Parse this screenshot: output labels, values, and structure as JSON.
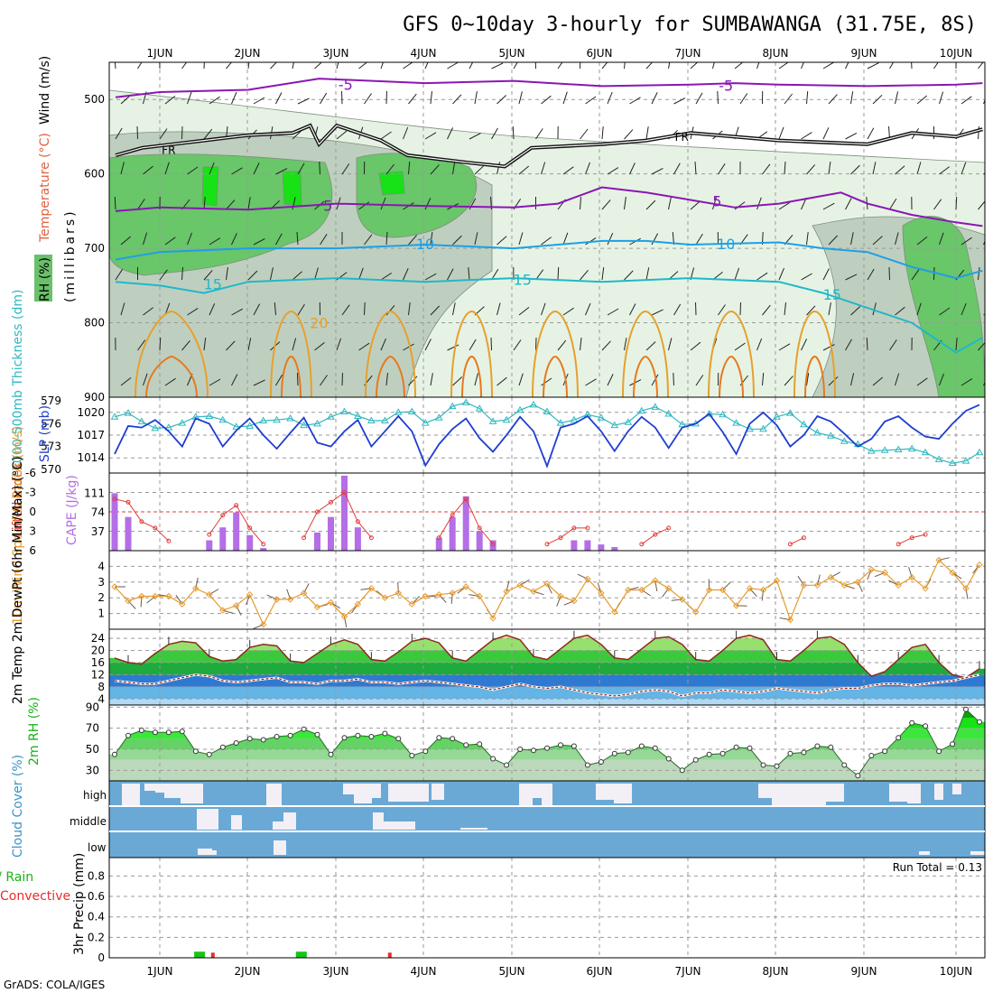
{
  "title": "GFS 0~10day 3-hourly for SUMBAWANGA (31.75E, 8S)",
  "footer": "GrADS: COLA/IGES",
  "run_total": "Run Total = 0.13",
  "colors": {
    "rh_light": "#e6f3e4",
    "rh_gray": "#bfcfbf",
    "rh_mid": "#69c669",
    "rh_bright": "#16e216",
    "temp_purple": "#8a16b4",
    "temp_blue": "#1e9fe6",
    "temp_cyan": "#20b8c8",
    "temp_orange": "#e6a02e",
    "temp_orange2": "#e67a1e",
    "slp": "#1e3ed2",
    "thickness": "#30b8c0",
    "cape": "#b46ee6",
    "lifted": "#e03c3c",
    "wind10": "#e69b2e",
    "temp2m": "#8b2b1e",
    "dewpt": "#e0a07a",
    "rh2m": "#16d216",
    "cloud": "#6aa9d6",
    "cloud_white": "#f2f0f6",
    "precip_total": "#16c416",
    "precip_conv": "#e62e2e"
  },
  "chart_data": [
    {
      "type": "heatmap",
      "name": "upper",
      "ylabel_parts": [
        "RH (%)",
        "Temperature (°C)",
        "Wind (m/s)"
      ],
      "ylabel_unit": "(millibars)",
      "x": [
        "1JUN",
        "2JUN",
        "3JUN",
        "4JUN",
        "5JUN",
        "6JUN",
        "7JUN",
        "8JUN",
        "9JUN",
        "10JUN"
      ],
      "ylim": [
        900,
        450
      ],
      "yticks": [
        500,
        600,
        700,
        800,
        900
      ],
      "contour_labels": [
        "-5",
        "-5",
        "FR",
        "FR",
        "5",
        "5",
        "10",
        "10",
        "15",
        "15",
        "15",
        "20"
      ],
      "isotherms": [
        {
          "label": "-5",
          "color": "temp_purple",
          "values": [
            [
              0.5,
              497
            ],
            [
              1,
              490
            ],
            [
              2,
              487
            ],
            [
              2.8,
              472
            ],
            [
              4,
              478
            ],
            [
              5,
              475
            ],
            [
              6,
              482
            ],
            [
              7,
              480
            ],
            [
              7.5,
              478
            ],
            [
              8,
              480
            ],
            [
              9,
              482
            ],
            [
              10,
              480
            ],
            [
              10.3,
              478
            ]
          ]
        },
        {
          "label": "FR",
          "color": "black",
          "values": [
            [
              0.5,
              575
            ],
            [
              0.8,
              565
            ],
            [
              1.5,
              555
            ],
            [
              2,
              548
            ],
            [
              2.5,
              545
            ],
            [
              2.7,
              535
            ],
            [
              2.8,
              560
            ],
            [
              3,
              535
            ],
            [
              3.5,
              555
            ],
            [
              3.8,
              575
            ],
            [
              4.5,
              585
            ],
            [
              4.9,
              590
            ],
            [
              5.2,
              565
            ],
            [
              6,
              560
            ],
            [
              6.5,
              555
            ],
            [
              7,
              545
            ],
            [
              8,
              555
            ],
            [
              9,
              560
            ],
            [
              9.5,
              545
            ],
            [
              10,
              550
            ],
            [
              10.3,
              540
            ]
          ]
        },
        {
          "label": "5",
          "color": "temp_purple",
          "values": [
            [
              0.5,
              650
            ],
            [
              1,
              645
            ],
            [
              2,
              648
            ],
            [
              3,
              640
            ],
            [
              4,
              643
            ],
            [
              5,
              645
            ],
            [
              5.5,
              640
            ],
            [
              6,
              618
            ],
            [
              6.5,
              625
            ],
            [
              7,
              635
            ],
            [
              7.5,
              645
            ],
            [
              8,
              640
            ],
            [
              8.7,
              625
            ],
            [
              9,
              640
            ],
            [
              9.5,
              655
            ],
            [
              10,
              665
            ],
            [
              10.3,
              670
            ]
          ]
        },
        {
          "label": "10",
          "color": "temp_blue",
          "values": [
            [
              0.5,
              715
            ],
            [
              1,
              705
            ],
            [
              2,
              700
            ],
            [
              3,
              700
            ],
            [
              4,
              695
            ],
            [
              5,
              700
            ],
            [
              6,
              690
            ],
            [
              6.5,
              690
            ],
            [
              7,
              695
            ],
            [
              8,
              692
            ],
            [
              8.5,
              700
            ],
            [
              9,
              705
            ],
            [
              9.5,
              725
            ],
            [
              10,
              740
            ],
            [
              10.3,
              730
            ]
          ]
        },
        {
          "label": "15",
          "color": "temp_cyan",
          "values": [
            [
              0.5,
              745
            ],
            [
              1,
              750
            ],
            [
              1.5,
              760
            ],
            [
              2,
              745
            ],
            [
              3,
              740
            ],
            [
              4,
              745
            ],
            [
              5,
              740
            ],
            [
              6,
              745
            ],
            [
              7,
              740
            ],
            [
              8,
              745
            ],
            [
              8.5,
              760
            ],
            [
              9,
              780
            ],
            [
              9.5,
              800
            ],
            [
              10,
              840
            ],
            [
              10.3,
              820
            ]
          ]
        }
      ]
    },
    {
      "type": "line",
      "name": "pressure",
      "ylabel_left": "1000-500mb Thickness (dm)",
      "ylabel_right": "SLP (mb)",
      "yticks_left": [
        570,
        573,
        576,
        579
      ],
      "yticks_right": [
        1014,
        1017,
        1020
      ],
      "ylim_slp": [
        1012,
        1022
      ],
      "slp": [
        1014.5,
        1018.2,
        1018.0,
        1019.0,
        1017.5,
        1015.5,
        1019.2,
        1018.5,
        1015.5,
        1017.6,
        1019.2,
        1017.0,
        1015.2,
        1017.3,
        1019.3,
        1016.0,
        1015.5,
        1017.5,
        1019.0,
        1015.5,
        1017.5,
        1019.5,
        1017.5,
        1013.0,
        1015.8,
        1017.8,
        1019.2,
        1016.6,
        1014.8,
        1017.0,
        1019.4,
        1017.5,
        1012.9,
        1018.0,
        1018.5,
        1019.5,
        1017.5,
        1014.9,
        1017.5,
        1019.4,
        1018.0,
        1015.3,
        1018.0,
        1018.5,
        1019.8,
        1017.4,
        1014.5,
        1018.5,
        1020.0,
        1018.3,
        1015.5,
        1017.0,
        1019.5,
        1018.8,
        1017.2,
        1015.5,
        1016.5,
        1018.8,
        1019.5,
        1018.0,
        1016.8,
        1016.5,
        1018.5,
        1020.2,
        1021.0
      ],
      "thickness": [
        576.9,
        577.4,
        576.3,
        575.4,
        575.5,
        576.1,
        576.9,
        577.0,
        576.5,
        575.6,
        575.7,
        576.4,
        576.5,
        576.7,
        575.8,
        576.0,
        576.9,
        577.6,
        577.0,
        576.4,
        576.4,
        577.5,
        577.6,
        576.1,
        576.8,
        578.3,
        578.8,
        578.0,
        576.3,
        576.5,
        577.8,
        578.5,
        577.6,
        576.1,
        576.5,
        577.2,
        576.8,
        575.8,
        576.2,
        577.7,
        578.2,
        577.3,
        575.9,
        576.0,
        577.3,
        577.2,
        576.1,
        575.3,
        575.3,
        576.9,
        577.4,
        575.9,
        574.8,
        574.4,
        573.7,
        573.3,
        572.4,
        572.5,
        572.6,
        572.7,
        572.2,
        571.3,
        570.8,
        571.1,
        572.2
      ]
    },
    {
      "type": "bar",
      "name": "stability",
      "ylabel_left": "Lifted Index",
      "ylabel_right": "CAPE (J/kg)",
      "yticks_left": [
        -6,
        -3,
        0,
        3,
        6
      ],
      "yticks_right": [
        37,
        74,
        111
      ],
      "cape": [
        111,
        65,
        0,
        0,
        0,
        0,
        0,
        20,
        45,
        74,
        30,
        5,
        0,
        0,
        0,
        35,
        65,
        145,
        45,
        0,
        0,
        0,
        0,
        0,
        25,
        65,
        105,
        38,
        20,
        0,
        0,
        0,
        0,
        0,
        20,
        20,
        12,
        7,
        0,
        0,
        0,
        0,
        0,
        0,
        0,
        0,
        0,
        0,
        0,
        0,
        0,
        0,
        0,
        0,
        0,
        0,
        0,
        0,
        0,
        0,
        0,
        0,
        0,
        0,
        0
      ],
      "lifted_index": [
        -2,
        -1.5,
        1.5,
        2.5,
        4.5,
        6,
        6,
        3.5,
        0.5,
        -1,
        2.5,
        5,
        6,
        6,
        4,
        0,
        -1.5,
        -3,
        1.5,
        4,
        6,
        6,
        6,
        6,
        4,
        0.5,
        -2,
        2.5,
        5,
        6,
        6,
        6,
        5,
        4,
        2.5,
        2.5,
        6,
        6,
        6,
        5,
        3.5,
        2.5,
        6,
        6,
        6,
        6,
        6,
        6,
        6,
        6,
        5,
        4,
        6,
        6,
        6,
        6,
        6,
        6,
        5,
        4,
        3.5,
        6,
        6,
        6,
        6
      ]
    },
    {
      "type": "line",
      "name": "wind10m",
      "ylabel": "10m Wind Speed & Barbs (m/s)",
      "yticks": [
        1,
        2,
        3,
        4
      ],
      "ylim": [
        0,
        5
      ],
      "values": [
        2.7,
        1.8,
        2.1,
        2.1,
        2.1,
        1.6,
        2.6,
        2.2,
        1.2,
        1.5,
        2.2,
        0.3,
        1.9,
        1.9,
        2.3,
        1.4,
        1.7,
        0.8,
        1.6,
        2.6,
        2.0,
        2.3,
        1.6,
        2.1,
        2.2,
        2.3,
        2.7,
        2.1,
        0.7,
        2.4,
        2.8,
        2.4,
        2.9,
        2.1,
        1.8,
        3.2,
        2.3,
        1.1,
        2.5,
        2.5,
        3.1,
        2.6,
        1.9,
        1.1,
        2.5,
        2.5,
        1.5,
        2.6,
        2.5,
        3.1,
        0.6,
        2.8,
        2.8,
        3.3,
        2.8,
        3.0,
        3.8,
        3.6,
        2.8,
        3.3,
        2.6,
        4.4,
        3.6,
        2.6,
        4.1
      ]
    },
    {
      "type": "area",
      "name": "temp2m",
      "ylabel": "2m Temp 2m DewPt (6hr Min/Max) (°C)",
      "yticks": [
        4,
        8,
        12,
        16,
        20,
        24
      ],
      "ylim": [
        2,
        27
      ],
      "temp": [
        17.5,
        16,
        15.5,
        19,
        22,
        23,
        22.5,
        18,
        16.5,
        17,
        21,
        22,
        21.5,
        16.5,
        16,
        19,
        22,
        23.5,
        22,
        17,
        16.5,
        19.5,
        23,
        24,
        22.5,
        17.5,
        16.5,
        20,
        23.5,
        25,
        23.5,
        18,
        17,
        20.5,
        24,
        25,
        22,
        17.5,
        17,
        20.5,
        24,
        24.5,
        22,
        17,
        16.5,
        20,
        24,
        25,
        23.5,
        17,
        16.5,
        20,
        24,
        24.5,
        22,
        16,
        11.5,
        13,
        17,
        21,
        22,
        16,
        12,
        11,
        14
      ],
      "dewpt": [
        10,
        9.5,
        9,
        9,
        10,
        11,
        12,
        11.5,
        10,
        9.5,
        10,
        10.5,
        11,
        9.5,
        9.5,
        9,
        10,
        10,
        10.5,
        9.5,
        9.5,
        9,
        9.5,
        10,
        9.5,
        9,
        8.5,
        8,
        7,
        8,
        9,
        8,
        7.5,
        8,
        7,
        6,
        5.5,
        5,
        5.5,
        6.5,
        7,
        6.5,
        5,
        6,
        6,
        7,
        6.5,
        6,
        6.5,
        7.5,
        7,
        6.5,
        6,
        7,
        7.5,
        7.5,
        8.5,
        9,
        9,
        8.5,
        9,
        9.5,
        10,
        11,
        12
      ]
    },
    {
      "type": "area",
      "name": "rh2m",
      "ylabel": "2m RH (%)",
      "yticks": [
        30,
        50,
        70,
        90
      ],
      "ylim": [
        20,
        92
      ],
      "values": [
        45,
        63,
        68,
        66,
        66,
        67,
        48,
        45,
        52,
        56,
        60,
        59,
        62,
        63,
        69,
        64,
        45,
        61,
        63,
        62,
        65,
        60,
        44,
        48,
        61,
        60,
        54,
        55,
        41,
        35,
        50,
        49,
        51,
        54,
        53,
        35,
        38,
        46,
        47,
        53,
        51,
        41,
        30,
        40,
        45,
        46,
        52,
        51,
        35,
        34,
        46,
        47,
        53,
        52,
        35,
        25,
        44,
        48,
        61,
        75,
        72,
        48,
        55,
        88,
        76
      ]
    },
    {
      "type": "heatmap",
      "name": "cloud",
      "ylabel": "Cloud Cover (%)",
      "levels": [
        "high",
        "middle",
        "low"
      ]
    },
    {
      "type": "bar",
      "name": "precip",
      "ylabel": "3hr Precip (mm)",
      "ylabel_parts": [
        "Total / Rain",
        "Convective"
      ],
      "yticks": [
        0,
        0.2,
        0.4,
        0.6,
        0.8
      ],
      "ylim": [
        0,
        0.98
      ],
      "total": [
        {
          "x": 1.45,
          "v": 0.06
        },
        {
          "x": 2.6,
          "v": 0.06
        }
      ],
      "convective": [
        {
          "x": 1.6,
          "v": 0.05
        },
        {
          "x": 3.6,
          "v": 0.05
        }
      ]
    }
  ]
}
